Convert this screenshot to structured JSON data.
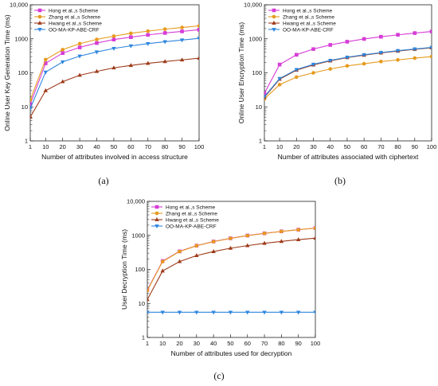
{
  "chart_data": [
    {
      "type": "line",
      "panel_label": "(a)",
      "xlabel": "Number of attributes involved in access structure",
      "ylabel": "Online User Key Generation Time (ms)",
      "ylim": [
        1,
        10000
      ],
      "yscale": "log",
      "xlim": [
        1,
        100
      ],
      "x_ticks": [
        "1",
        "10",
        "20",
        "30",
        "40",
        "50",
        "60",
        "70",
        "80",
        "90",
        "100"
      ],
      "y_ticks": [
        "1",
        "10",
        "100",
        "1000",
        "10,000"
      ],
      "legend_position": "top-left",
      "x": [
        1,
        10,
        20,
        30,
        40,
        50,
        60,
        70,
        80,
        90,
        100
      ],
      "series": [
        {
          "name": "Hong et al.,s Scheme",
          "color": "#d63cd6",
          "marker": "square",
          "values": [
            12,
            190,
            380,
            560,
            750,
            950,
            1120,
            1300,
            1480,
            1650,
            1850
          ]
        },
        {
          "name": "Zhang et al.,s Scheme",
          "color": "#e69a1e",
          "marker": "circle",
          "values": [
            16,
            245,
            480,
            720,
            960,
            1200,
            1450,
            1680,
            1920,
            2150,
            2400
          ]
        },
        {
          "name": "Hwang et al.,s Scheme",
          "color": "#9e3a1a",
          "marker": "triangle",
          "values": [
            5,
            30,
            55,
            85,
            110,
            140,
            165,
            190,
            215,
            240,
            270
          ]
        },
        {
          "name": "OO-MA-KP-ABE-CRF",
          "color": "#2e86de",
          "marker": "triangle-down",
          "values": [
            9,
            105,
            210,
            310,
            410,
            520,
            620,
            720,
            820,
            920,
            1030
          ]
        }
      ]
    },
    {
      "type": "line",
      "panel_label": "(b)",
      "xlabel": "Number of attributes associated with ciphertext",
      "ylabel": "Online User Encryption Time (ms)",
      "ylim": [
        1,
        10000
      ],
      "yscale": "log",
      "xlim": [
        1,
        100
      ],
      "x_ticks": [
        "1",
        "10",
        "20",
        "30",
        "40",
        "50",
        "60",
        "70",
        "80",
        "90",
        "100"
      ],
      "y_ticks": [
        "1",
        "10",
        "100",
        "1000",
        "10,000"
      ],
      "legend_position": "top-left",
      "x": [
        1,
        10,
        20,
        30,
        40,
        50,
        60,
        70,
        80,
        90,
        100
      ],
      "series": [
        {
          "name": "Hong et al.,s Scheme",
          "color": "#d63cd6",
          "marker": "square",
          "values": [
            25,
            175,
            340,
            500,
            660,
            820,
            990,
            1150,
            1310,
            1470,
            1640
          ]
        },
        {
          "name": "Zhang et al.,s Scheme",
          "color": "#e69a1e",
          "marker": "circle",
          "values": [
            17,
            45,
            75,
            100,
            130,
            160,
            185,
            215,
            240,
            270,
            300
          ]
        },
        {
          "name": "Hwang et al.,s Scheme",
          "color": "#9e3a1a",
          "marker": "triangle",
          "values": [
            19,
            65,
            120,
            170,
            225,
            280,
            330,
            385,
            435,
            490,
            545
          ]
        },
        {
          "name": "OO-MA-KP-ABE-CRF",
          "color": "#2e86de",
          "marker": "triangle-down",
          "values": [
            20,
            68,
            125,
            178,
            232,
            288,
            340,
            395,
            448,
            502,
            558
          ]
        }
      ]
    },
    {
      "type": "line",
      "panel_label": "(c)",
      "xlabel": "Number of attributes used for decryption",
      "ylabel": "User Decryption Time (ms)",
      "ylim": [
        1,
        10000
      ],
      "yscale": "log",
      "xlim": [
        1,
        100
      ],
      "x_ticks": [
        "1",
        "10",
        "20",
        "30",
        "40",
        "50",
        "60",
        "70",
        "80",
        "90",
        "100"
      ],
      "y_ticks": [
        "1",
        "10",
        "100",
        "1000",
        "10,000"
      ],
      "legend_position": "top-left",
      "x": [
        1,
        10,
        20,
        30,
        40,
        50,
        60,
        70,
        80,
        90,
        100
      ],
      "series": [
        {
          "name": "Hong et al.,s Scheme",
          "color": "#d63cd6",
          "marker": "square",
          "values": [
            25,
            175,
            340,
            500,
            660,
            820,
            990,
            1150,
            1310,
            1470,
            1640
          ]
        },
        {
          "name": "Zhang et al.,s Scheme",
          "color": "#e69a1e",
          "marker": "circle",
          "values": [
            24,
            170,
            335,
            495,
            655,
            815,
            985,
            1145,
            1305,
            1465,
            1635
          ]
        },
        {
          "name": "Hwang et al.,s Scheme",
          "color": "#9e3a1a",
          "marker": "triangle",
          "values": [
            13,
            90,
            170,
            255,
            335,
            420,
            500,
            585,
            665,
            750,
            830
          ]
        },
        {
          "name": "OO-MA-KP-ABE-CRF",
          "color": "#2e86de",
          "marker": "triangle-down",
          "values": [
            5.5,
            5.5,
            5.5,
            5.5,
            5.5,
            5.5,
            5.5,
            5.5,
            5.5,
            5.5,
            5.5
          ]
        }
      ]
    }
  ]
}
